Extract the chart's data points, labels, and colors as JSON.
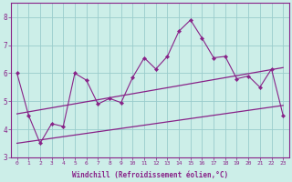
{
  "x_data": [
    0,
    1,
    2,
    3,
    4,
    5,
    6,
    7,
    8,
    9,
    10,
    11,
    12,
    13,
    14,
    15,
    16,
    17,
    18,
    19,
    20,
    21,
    22,
    23
  ],
  "y_main": [
    6.0,
    4.5,
    3.5,
    4.2,
    4.1,
    6.0,
    5.75,
    4.9,
    5.1,
    4.95,
    5.85,
    6.55,
    6.15,
    6.6,
    7.5,
    7.9,
    7.25,
    6.55,
    6.6,
    5.8,
    5.9,
    5.5,
    6.15,
    4.5
  ],
  "line_upper_start": 4.55,
  "line_upper_end": 6.2,
  "line_lower_start": 3.5,
  "line_lower_end": 4.85,
  "line_color": "#882288",
  "bg_color": "#cceee8",
  "grid_color": "#99cccc",
  "xlabel": "Windchill (Refroidissement éolien,°C)",
  "ylim": [
    3.0,
    8.5
  ],
  "xlim": [
    -0.5,
    23.5
  ],
  "yticks": [
    3,
    4,
    5,
    6,
    7,
    8
  ],
  "xticks": [
    0,
    1,
    2,
    3,
    4,
    5,
    6,
    7,
    8,
    9,
    10,
    11,
    12,
    13,
    14,
    15,
    16,
    17,
    18,
    19,
    20,
    21,
    22,
    23
  ]
}
